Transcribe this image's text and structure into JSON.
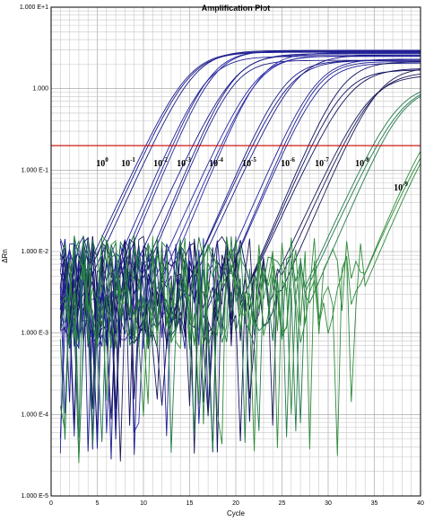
{
  "chart_data": {
    "type": "line",
    "title": "Amplification Plot",
    "xlabel": "Cycle",
    "ylabel": "ΔRn",
    "xlim": [
      0,
      40
    ],
    "ylim": [
      1e-05,
      10
    ],
    "y_scale": "log",
    "grid": true,
    "x_ticks": [
      "0",
      "5",
      "10",
      "15",
      "20",
      "25",
      "30",
      "35",
      "40"
    ],
    "y_ticks": [
      "1.000 E-5",
      "1.000 E-4",
      "1.000 E-3",
      "1.000 E-2",
      "1.000 E-1",
      "1.000",
      "1.000 E+1"
    ],
    "threshold": {
      "value": 0.2,
      "color": "#cc0000"
    },
    "dilution_labels": [
      {
        "base": "10",
        "exp": "0"
      },
      {
        "base": "10",
        "exp": "-1"
      },
      {
        "base": "10",
        "exp": "-2"
      },
      {
        "base": "10",
        "exp": "-3"
      },
      {
        "base": "10",
        "exp": "-4"
      },
      {
        "base": "10",
        "exp": "-5"
      },
      {
        "base": "10",
        "exp": "-6"
      },
      {
        "base": "10",
        "exp": "-7"
      },
      {
        "base": "10",
        "exp": "-8"
      },
      {
        "base": "10",
        "exp": "-9"
      }
    ],
    "series": [
      {
        "ct": 10.6,
        "plateau": 2.8,
        "color": "#1a1a8c",
        "replicates": 3
      },
      {
        "ct": 13.2,
        "plateau": 2.7,
        "color": "#22229a",
        "replicates": 3
      },
      {
        "ct": 15.8,
        "plateau": 2.6,
        "color": "#1a1a8c",
        "replicates": 3
      },
      {
        "ct": 18.4,
        "plateau": 2.5,
        "color": "#2a2aa6",
        "replicates": 3
      },
      {
        "ct": 21.8,
        "plateau": 2.4,
        "color": "#1a1a8c",
        "replicates": 3
      },
      {
        "ct": 25.2,
        "plateau": 2.2,
        "color": "#22229a",
        "replicates": 3
      },
      {
        "ct": 28.3,
        "plateau": 1.9,
        "color": "#101060",
        "replicates": 3
      },
      {
        "ct": 31.7,
        "plateau": 1.6,
        "color": "#1a1a5a",
        "replicates": 3
      },
      {
        "ct": 35.3,
        "plateau": 1.1,
        "color": "#1f7a4a",
        "replicates": 3
      },
      {
        "ct": 40.8,
        "plateau": 0.6,
        "color": "#2e8b3a",
        "replicates": 3
      }
    ]
  }
}
